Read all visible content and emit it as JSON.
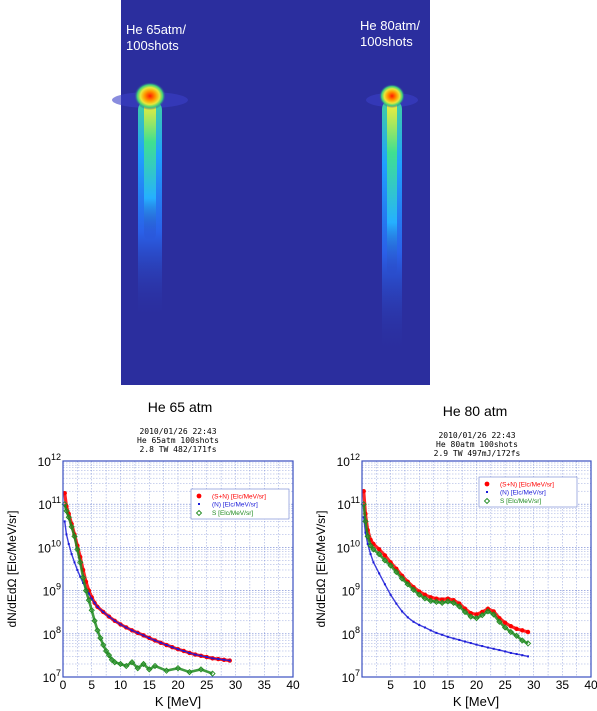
{
  "image_panel": {
    "left_label": [
      "He 65atm/",
      "100shots"
    ],
    "right_label": [
      "He 80atm/",
      "100shots"
    ],
    "background": "#2b2e9e"
  },
  "colors": {
    "s_plus_n": "#ff0000",
    "n": "#1a1ad8",
    "s": "#1e8a1e",
    "grid": "#6a7fd0",
    "frame": "#3b4fc0"
  },
  "chart_data": [
    {
      "type": "scatter",
      "title": "He 65 atm",
      "subtitle": [
        "2010/01/26  22:43",
        "He  65atm  100shots",
        "2.8  TW  482/171fs"
      ],
      "xlabel": "K [MeV]",
      "ylabel": "dN/dEdΩ [Elc/MeV/sr]",
      "xlim": [
        0,
        40
      ],
      "ylim": [
        10000000,
        1000000000000
      ],
      "yscale": "log",
      "grid": true,
      "legend_position": "top-right",
      "x_ticks": [
        "0",
        "5",
        "10",
        "15",
        "20",
        "25",
        "30",
        "35",
        "40"
      ],
      "y_ticks": [
        {
          "base": "10",
          "exp": "7"
        },
        {
          "base": "10",
          "exp": "8"
        },
        {
          "base": "10",
          "exp": "9"
        },
        {
          "base": "10",
          "exp": "10"
        },
        {
          "base": "10",
          "exp": "11"
        },
        {
          "base": "10",
          "exp": "12"
        }
      ],
      "series": [
        {
          "name": "(S+N) [Elc/MeV/sr]",
          "x": [
            0.3,
            0.6,
            1,
            1.5,
            2,
            2.5,
            3,
            3.5,
            4,
            4.5,
            5,
            5.5,
            6,
            7,
            8,
            9,
            10,
            11,
            12,
            13,
            14,
            15,
            16,
            17,
            18,
            19,
            20,
            21,
            22,
            23,
            24,
            25,
            26,
            27,
            28,
            29
          ],
          "y": [
            180000000000,
            90000000000,
            60000000000,
            35000000000,
            20000000000,
            11000000000,
            6000000000,
            3000000000,
            1600000000,
            1000000000,
            700000000,
            520000000,
            420000000,
            320000000,
            250000000,
            200000000,
            165000000,
            140000000,
            120000000,
            105000000,
            92000000,
            80000000,
            70000000,
            62000000,
            55000000,
            49000000,
            44000000,
            40000000,
            36000000,
            33000000,
            31000000,
            29000000,
            27000000,
            26000000,
            25000000,
            24000000
          ]
        },
        {
          "name": "(N) [Elc/MeV/sr]",
          "x": [
            0.3,
            0.6,
            1,
            1.5,
            2,
            2.5,
            3,
            3.5,
            4,
            4.5,
            5,
            5.5,
            6,
            7,
            8,
            9,
            10,
            11,
            12,
            13,
            14,
            15,
            16,
            17,
            18,
            19,
            20,
            21,
            22,
            23,
            24,
            25,
            26,
            27,
            28,
            29
          ],
          "y": [
            40000000000,
            20000000000,
            12000000000,
            7000000000,
            4500000000,
            3000000000,
            2100000000,
            1500000000,
            1100000000,
            850000000,
            650000000,
            520000000,
            420000000,
            320000000,
            250000000,
            200000000,
            165000000,
            140000000,
            120000000,
            105000000,
            92000000,
            80000000,
            70000000,
            62000000,
            55000000,
            49000000,
            44000000,
            40000000,
            36000000,
            33000000,
            31000000,
            29000000,
            27000000,
            26000000,
            25000000,
            24000000
          ]
        },
        {
          "name": "S [Elc/MeV/sr]",
          "x": [
            0.3,
            0.6,
            1,
            1.5,
            2,
            2.5,
            3,
            3.5,
            4,
            4.5,
            5,
            5.5,
            6,
            6.5,
            7,
            7.5,
            8,
            8.5,
            9,
            10,
            11,
            12,
            13,
            14,
            15,
            16,
            18,
            20,
            22,
            24,
            26
          ],
          "y": [
            100000000000,
            70000000000,
            50000000000,
            30000000000,
            18000000000,
            9000000000,
            4500000000,
            2000000000,
            1000000000,
            600000000,
            350000000,
            200000000,
            120000000,
            80000000,
            55000000,
            40000000,
            32000000,
            25000000,
            22000000,
            20000000,
            18000000,
            22000000,
            16000000,
            20000000,
            15000000,
            18000000,
            14000000,
            16000000,
            13000000,
            15000000,
            12000000
          ]
        }
      ]
    },
    {
      "type": "scatter",
      "title": "He 80 atm",
      "subtitle": [
        "2010/01/26  22:43",
        "He  80atm  100shots",
        "2.9  TW  497mJ/172fs"
      ],
      "xlabel": "K [MeV]",
      "ylabel": "dN/dEdΩ [Elc/MeV/sr]",
      "xlim": [
        0,
        40
      ],
      "ylim": [
        10000000,
        1000000000000
      ],
      "yscale": "log",
      "grid": true,
      "legend_position": "top-right",
      "x_ticks": [
        "5",
        "10",
        "15",
        "20",
        "25",
        "30",
        "35",
        "40"
      ],
      "y_ticks": [
        {
          "base": "10",
          "exp": "7"
        },
        {
          "base": "10",
          "exp": "8"
        },
        {
          "base": "10",
          "exp": "9"
        },
        {
          "base": "10",
          "exp": "10"
        },
        {
          "base": "10",
          "exp": "11"
        },
        {
          "base": "10",
          "exp": "12"
        }
      ],
      "series": [
        {
          "name": "(S+N) [Elc/MeV/sr]",
          "x": [
            0.3,
            0.6,
            1,
            1.5,
            2,
            3,
            4,
            5,
            6,
            7,
            8,
            9,
            10,
            11,
            12,
            13,
            14,
            15,
            16,
            17,
            18,
            19,
            20,
            21,
            22,
            23,
            24,
            25,
            26,
            27,
            28,
            29
          ],
          "y": [
            200000000000,
            60000000000,
            25000000000,
            15000000000,
            12000000000,
            9000000000,
            6500000000,
            4500000000,
            3200000000,
            2200000000,
            1600000000,
            1200000000,
            950000000,
            800000000,
            700000000,
            650000000,
            620000000,
            650000000,
            600000000,
            500000000,
            380000000,
            300000000,
            280000000,
            320000000,
            380000000,
            330000000,
            230000000,
            180000000,
            150000000,
            130000000,
            120000000,
            110000000
          ]
        },
        {
          "name": "(N) [Elc/MeV/sr]",
          "x": [
            0.3,
            0.6,
            1,
            1.5,
            2,
            3,
            4,
            5,
            6,
            7,
            8,
            9,
            10,
            11,
            12,
            13,
            14,
            15,
            16,
            17,
            18,
            19,
            20,
            21,
            22,
            23,
            24,
            25,
            26,
            27,
            28,
            29
          ],
          "y": [
            50000000000,
            22000000000,
            12000000000,
            7000000000,
            4500000000,
            2500000000,
            1400000000,
            800000000,
            500000000,
            330000000,
            240000000,
            190000000,
            160000000,
            140000000,
            120000000,
            105000000,
            95000000,
            85000000,
            78000000,
            72000000,
            66000000,
            61000000,
            56000000,
            52000000,
            48000000,
            45000000,
            42000000,
            39000000,
            36000000,
            34000000,
            32000000,
            30000000
          ]
        },
        {
          "name": "S [Elc/MeV/sr]",
          "x": [
            0.3,
            0.6,
            1,
            1.5,
            2,
            3,
            4,
            5,
            6,
            7,
            8,
            9,
            10,
            11,
            12,
            13,
            14,
            15,
            16,
            17,
            18,
            19,
            20,
            21,
            22,
            23,
            24,
            25,
            26,
            27,
            28,
            29
          ],
          "y": [
            100000000000,
            40000000000,
            18000000000,
            11000000000,
            9000000000,
            7000000000,
            5000000000,
            3800000000,
            2700000000,
            1900000000,
            1400000000,
            1050000000,
            800000000,
            660000000,
            580000000,
            550000000,
            520000000,
            560000000,
            520000000,
            430000000,
            320000000,
            250000000,
            230000000,
            270000000,
            330000000,
            280000000,
            190000000,
            140000000,
            110000000,
            90000000,
            70000000,
            60000000
          ]
        }
      ]
    }
  ]
}
